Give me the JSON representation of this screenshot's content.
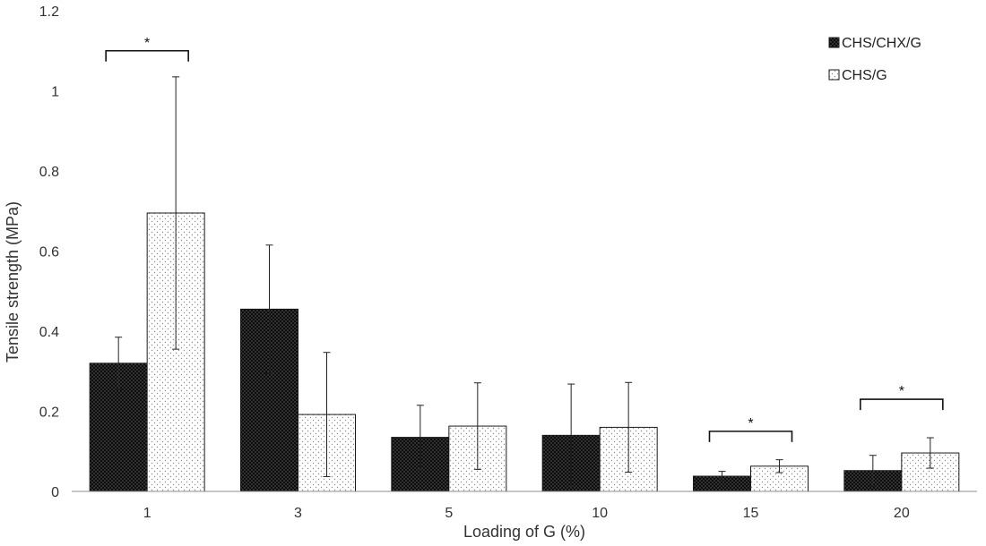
{
  "chart_data": {
    "type": "bar",
    "title": "",
    "xlabel": "Loading of G (%)",
    "ylabel": "Tensile strength (MPa)",
    "categories": [
      "1",
      "3",
      "5",
      "10",
      "15",
      "20"
    ],
    "ylim": [
      0,
      1.2
    ],
    "yticks": [
      "0",
      "0.2",
      "0.4",
      "0.6",
      "0.8",
      "1",
      "1.2"
    ],
    "ytick_values": [
      0,
      0.2,
      0.4,
      0.6,
      0.8,
      1.0,
      1.2
    ],
    "grid": false,
    "legend_position": "top-right",
    "series": [
      {
        "name": "CHS/CHX/G",
        "values": [
          0.32,
          0.455,
          0.135,
          0.14,
          0.038,
          0.052
        ],
        "errors": [
          0.065,
          0.16,
          0.08,
          0.128,
          0.012,
          0.038
        ],
        "fill": "#111111",
        "pattern": "dense-dots"
      },
      {
        "name": "CHS/G",
        "values": [
          0.695,
          0.192,
          0.163,
          0.16,
          0.063,
          0.096
        ],
        "errors": [
          0.34,
          0.155,
          0.108,
          0.112,
          0.016,
          0.038
        ],
        "fill": "#f2f2f2",
        "pattern": "sparse-dots"
      }
    ],
    "annotations": [
      {
        "text": "*",
        "category": "1",
        "bracket_y": 1.1
      },
      {
        "text": "*",
        "category": "15",
        "bracket_y": 0.15
      },
      {
        "text": "*",
        "category": "20",
        "bracket_y": 0.23
      }
    ]
  }
}
